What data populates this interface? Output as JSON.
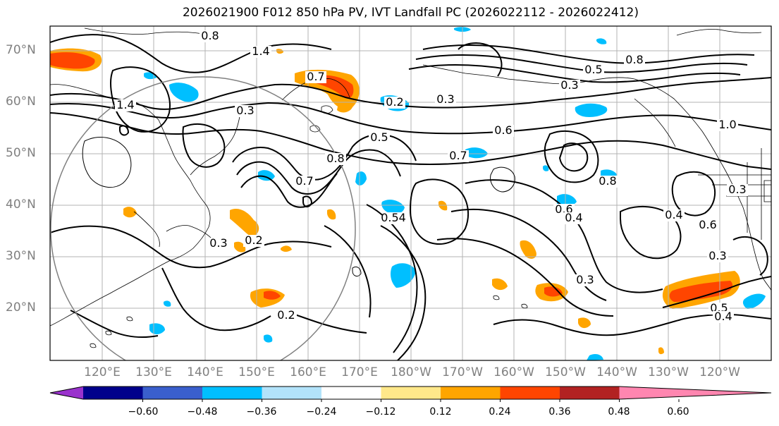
{
  "title": "2026021900 F012 850 hPa PV, IVT Landfall PC (2026022112 - 2026022412)",
  "lat_labels": [
    "70°N",
    "60°N",
    "50°N",
    "40°N",
    "30°N",
    "20°N"
  ],
  "lon_labels": [
    "120°E",
    "130°E",
    "140°E",
    "150°E",
    "160°E",
    "170°E",
    "180°W",
    "170°W",
    "160°W",
    "150°W",
    "140°W",
    "130°W",
    "120°W"
  ],
  "colorbar": {
    "colors": [
      "#9a32cd",
      "#00008b",
      "#3a5fcd",
      "#00bfff",
      "#b2e3fa",
      "#ffffff",
      "#ffe88a",
      "#ffa500",
      "#ff4500",
      "#b22222",
      "#ff86b0"
    ],
    "labels": [
      "−0.60",
      "−0.48",
      "−0.36",
      "−0.24",
      "−0.12",
      "0.12",
      "0.24",
      "0.36",
      "0.48",
      "0.60"
    ]
  },
  "contour_labels": [
    {
      "text": "1.4"
    },
    {
      "text": "1.4"
    },
    {
      "text": "0.8"
    },
    {
      "text": "0.7"
    },
    {
      "text": "0.2"
    },
    {
      "text": "0.3"
    },
    {
      "text": "0.3"
    },
    {
      "text": "0.8"
    },
    {
      "text": "0.5"
    },
    {
      "text": "0.3"
    },
    {
      "text": "0.6"
    },
    {
      "text": "0.5"
    },
    {
      "text": "0.8"
    },
    {
      "text": "0.7"
    },
    {
      "text": "0.7"
    },
    {
      "text": "0.8"
    },
    {
      "text": "0.3"
    },
    {
      "text": "0.54"
    },
    {
      "text": "0.6"
    },
    {
      "text": "0.4"
    },
    {
      "text": "0.4"
    },
    {
      "text": "0.3"
    },
    {
      "text": "0.3"
    },
    {
      "text": "0.2"
    },
    {
      "text": "0.2"
    },
    {
      "text": "0.3"
    },
    {
      "text": "0.5"
    },
    {
      "text": "0.4"
    },
    {
      "text": "1.0"
    },
    {
      "text": "0.6"
    }
  ]
}
